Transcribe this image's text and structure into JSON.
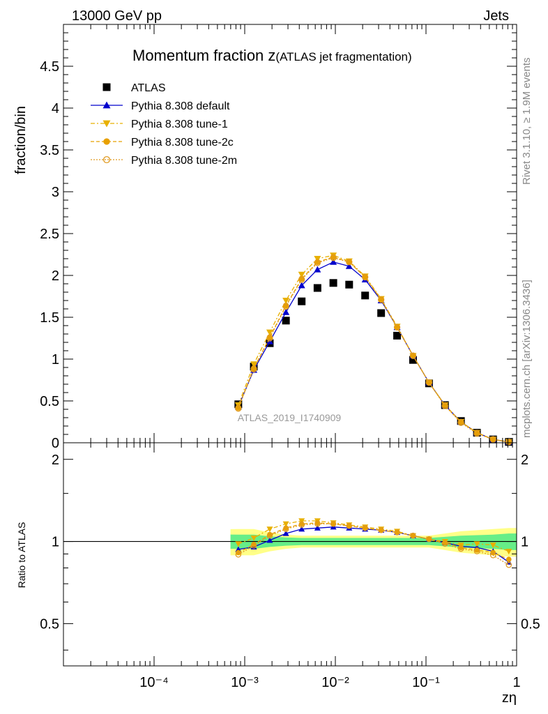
{
  "header": {
    "left": "13000 GeV pp",
    "right": "Jets"
  },
  "side": {
    "rivet": "Rivet 3.1.10, ≥ 1.9M events",
    "mcplots": "mcplots.cern.ch [arXiv:1306.3436]"
  },
  "chart_data": [
    {
      "type": "scatter",
      "title_main": "Momentum fraction z",
      "title_sub": "(ATLAS jet fragmentation)",
      "xlabel": "zη",
      "ylabel": "fraction/bin",
      "xscale": "log",
      "xlim": [
        1e-05,
        1
      ],
      "ylim": [
        0,
        5
      ],
      "x_ticklabels": [
        "10⁻⁴",
        "10⁻³",
        "10⁻²",
        "10⁻¹",
        "1"
      ],
      "y_ticklabels": [
        "0",
        "0.5",
        "1",
        "1.5",
        "2",
        "2.5",
        "3",
        "3.5",
        "4",
        "4.5"
      ],
      "watermark": "ATLAS_2019_I1740909",
      "legend_position": "top-left",
      "x": [
        0.00085,
        0.00126,
        0.00189,
        0.00285,
        0.00425,
        0.00635,
        0.0095,
        0.0142,
        0.0213,
        0.032,
        0.048,
        0.072,
        0.108,
        0.162,
        0.243,
        0.365,
        0.55,
        0.82
      ],
      "series": [
        {
          "name": "ATLAS",
          "color": "#000000",
          "marker": "square",
          "values": [
            0.46,
            0.91,
            1.19,
            1.46,
            1.69,
            1.85,
            1.91,
            1.89,
            1.76,
            1.55,
            1.28,
            0.99,
            0.71,
            0.45,
            0.26,
            0.12,
            0.04,
            0.01
          ]
        },
        {
          "name": "Pythia 8.308 default",
          "color": "#0000cc",
          "marker": "triangle-up",
          "dash": "",
          "values": [
            0.43,
            0.87,
            1.21,
            1.56,
            1.88,
            2.07,
            2.16,
            2.11,
            1.95,
            1.7,
            1.38,
            1.04,
            0.72,
            0.45,
            0.25,
            0.12,
            0.04,
            0.01
          ]
        },
        {
          "name": "Pythia 8.308 tune-1",
          "color": "#e8b000",
          "marker": "triangle-down",
          "dash": "6,3,2,3",
          "values": [
            0.45,
            0.94,
            1.32,
            1.7,
            2.01,
            2.2,
            2.24,
            2.17,
            1.99,
            1.72,
            1.39,
            1.04,
            0.72,
            0.45,
            0.25,
            0.12,
            0.04,
            0.01
          ]
        },
        {
          "name": "Pythia 8.308 tune-2c",
          "color": "#e8a000",
          "marker": "circle",
          "dash": "5,3",
          "values": [
            0.42,
            0.89,
            1.26,
            1.64,
            1.96,
            2.16,
            2.22,
            2.16,
            1.98,
            1.71,
            1.38,
            1.04,
            0.72,
            0.45,
            0.25,
            0.12,
            0.04,
            0.01
          ]
        },
        {
          "name": "Pythia 8.308 tune-2m",
          "color": "#e09a20",
          "marker": "circle-open",
          "dash": "2,2",
          "values": [
            0.41,
            0.88,
            1.25,
            1.63,
            1.95,
            2.15,
            2.21,
            2.16,
            1.98,
            1.71,
            1.38,
            1.04,
            0.72,
            0.44,
            0.24,
            0.11,
            0.04,
            0.01
          ]
        }
      ]
    },
    {
      "type": "line",
      "ylabel": "Ratio to ATLAS",
      "xscale": "log",
      "xlim": [
        1e-05,
        1
      ],
      "ylim": [
        0.35,
        2.3
      ],
      "y_ticklabels": [
        "0.5",
        "1",
        "2"
      ],
      "x": [
        0.00085,
        0.00126,
        0.00189,
        0.00285,
        0.00425,
        0.00635,
        0.0095,
        0.0142,
        0.0213,
        0.032,
        0.048,
        0.072,
        0.108,
        0.162,
        0.243,
        0.365,
        0.55,
        0.82
      ],
      "bands": {
        "green_halfwidth": [
          0.06,
          0.06,
          0.045,
          0.035,
          0.03,
          0.03,
          0.03,
          0.03,
          0.03,
          0.03,
          0.03,
          0.03,
          0.03,
          0.04,
          0.05,
          0.055,
          0.06,
          0.07
        ],
        "yellow_halfwidth": [
          0.11,
          0.11,
          0.08,
          0.06,
          0.05,
          0.05,
          0.05,
          0.05,
          0.05,
          0.05,
          0.05,
          0.05,
          0.05,
          0.07,
          0.09,
          0.1,
          0.11,
          0.12
        ],
        "green_color": "#66ee88",
        "yellow_color": "#ffff88"
      },
      "series": [
        {
          "name": "Pythia 8.308 default",
          "color": "#0000cc",
          "marker": "triangle-up",
          "dash": "",
          "values": [
            0.935,
            0.955,
            1.01,
            1.07,
            1.11,
            1.12,
            1.13,
            1.12,
            1.11,
            1.1,
            1.08,
            1.05,
            1.02,
            0.99,
            0.96,
            0.95,
            0.92,
            0.84
          ]
        },
        {
          "name": "Pythia 8.308 tune-1",
          "color": "#e8b000",
          "marker": "triangle-down",
          "dash": "6,3,2,3",
          "values": [
            0.98,
            1.03,
            1.11,
            1.16,
            1.19,
            1.19,
            1.17,
            1.15,
            1.13,
            1.11,
            1.09,
            1.05,
            1.02,
            1.0,
            0.97,
            0.98,
            0.97,
            0.92
          ]
        },
        {
          "name": "Pythia 8.308 tune-2c",
          "color": "#e8a000",
          "marker": "circle",
          "dash": "5,3",
          "values": [
            0.91,
            0.975,
            1.06,
            1.12,
            1.16,
            1.17,
            1.16,
            1.14,
            1.12,
            1.1,
            1.08,
            1.05,
            1.02,
            0.99,
            0.95,
            0.93,
            0.91,
            0.86
          ]
        },
        {
          "name": "Pythia 8.308 tune-2m",
          "color": "#e09a20",
          "marker": "circle-open",
          "dash": "2,2",
          "values": [
            0.895,
            0.965,
            1.05,
            1.11,
            1.15,
            1.16,
            1.16,
            1.14,
            1.12,
            1.1,
            1.08,
            1.05,
            1.02,
            0.98,
            0.94,
            0.92,
            0.89,
            0.82
          ]
        }
      ]
    }
  ]
}
